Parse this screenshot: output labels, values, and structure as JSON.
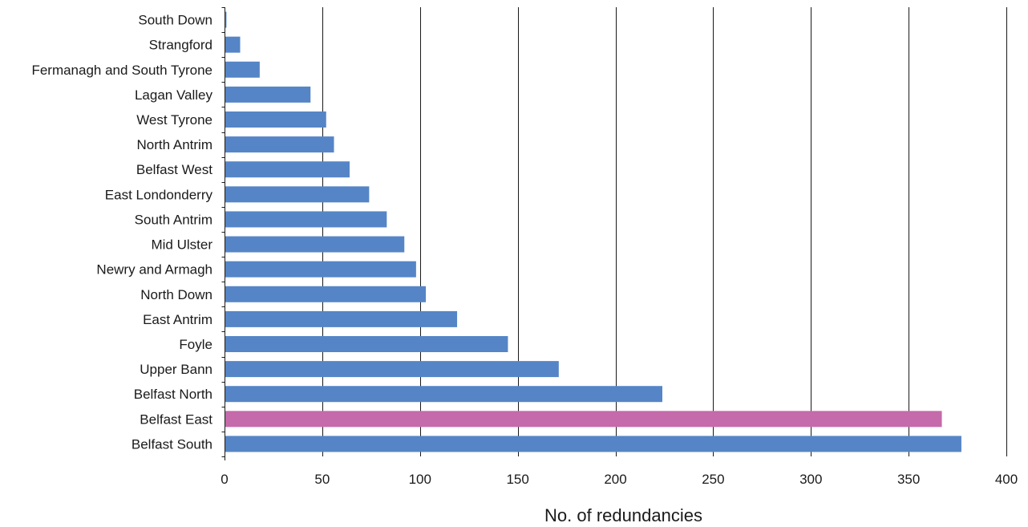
{
  "chart_data": {
    "type": "bar",
    "orientation": "horizontal",
    "categories": [
      "South Down",
      "Strangford",
      "Fermanagh and South Tyrone",
      "Lagan Valley",
      "West Tyrone",
      "North Antrim",
      "Belfast West",
      "East Londonderry",
      "South Antrim",
      "Mid Ulster",
      "Newry and Armagh",
      "North Down",
      "East Antrim",
      "Foyle",
      "Upper Bann",
      "Belfast North",
      "Belfast East",
      "Belfast South"
    ],
    "values": [
      1,
      8,
      18,
      44,
      52,
      56,
      64,
      74,
      83,
      92,
      98,
      103,
      119,
      145,
      171,
      224,
      367,
      377
    ],
    "highlight_category": "Belfast East",
    "colors": {
      "default": "#5585C6",
      "highlight": "#C56AAB"
    },
    "xlabel": "No. of redundancies",
    "ylabel": "",
    "title": "",
    "xlim": [
      0,
      400
    ],
    "xticks": [
      0,
      50,
      100,
      150,
      200,
      250,
      300,
      350,
      400
    ],
    "grid": "vertical",
    "legend": "none"
  }
}
